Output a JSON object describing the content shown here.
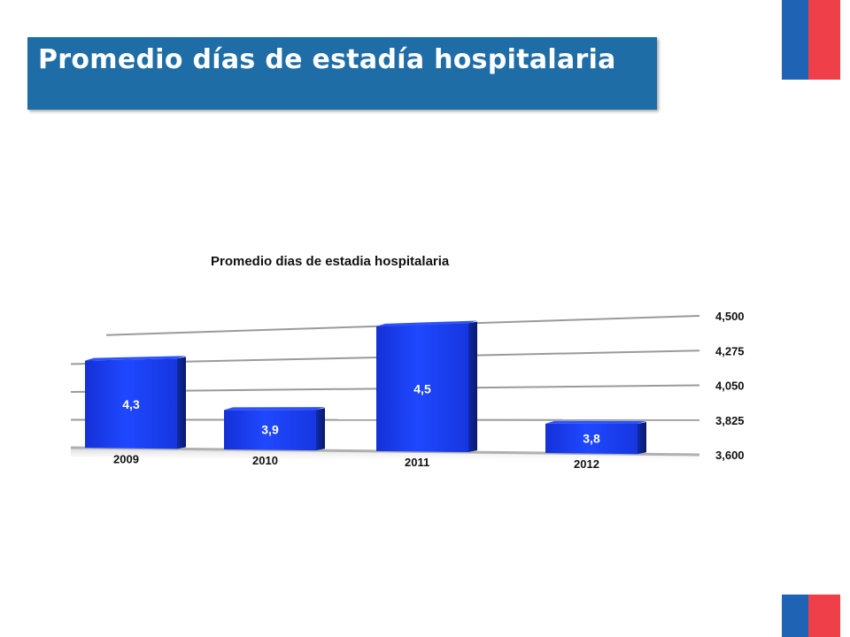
{
  "slide": {
    "title": "Promedio días de estadía hospitalaria"
  },
  "colors": {
    "banner": "#1f6da6",
    "bar": "#1a3ff0",
    "flag_blue": "#1f64b4",
    "flag_red": "#ef3f49"
  },
  "chart_data": {
    "type": "bar",
    "title": "Promedio dias de estadia hospitalaria",
    "categories": [
      "2009",
      "2010",
      "2011",
      "2012"
    ],
    "values": [
      4.3,
      3.9,
      4.5,
      3.8
    ],
    "value_labels": [
      "4,3",
      "3,9",
      "4,5",
      "3,8"
    ],
    "ylim": [
      3.6,
      4.5
    ],
    "yticks": [
      "3,600",
      "3,825",
      "4,050",
      "4,275",
      "4,500"
    ],
    "grid": true,
    "xlabel": "",
    "ylabel": ""
  }
}
